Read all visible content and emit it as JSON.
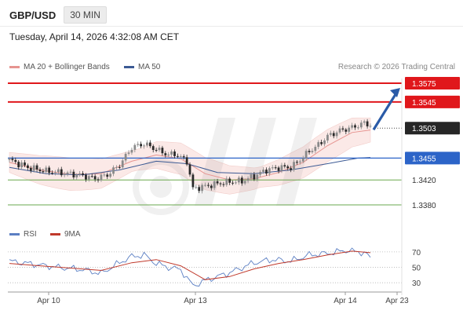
{
  "header": {
    "pair": "GBP/USD",
    "timeframe": "30 MIN",
    "datetime": "Tuesday, April 14, 2026 4:32:08 AM CET"
  },
  "legend": {
    "ma20_label": "MA 20 + Bollinger Bands",
    "ma50_label": "MA 50",
    "credit": "Research © 2026 Trading Central"
  },
  "rsi_legend": {
    "rsi_label": "RSI",
    "ma_label": "9MA"
  },
  "colors": {
    "resistance": "#e0171b",
    "current": "#262626",
    "pivot": "#2c64c8",
    "support": "#6aa84f",
    "bull_candle": "#8a8a8a",
    "bear_candle": "#2a2a2a",
    "bollinger_fill": "#fbe7e5",
    "ma20": "#e69490",
    "ma50": "#3c5a94",
    "arrow": "#2a5ba8",
    "rsi_line": "#5b7fc3",
    "rsi_ma": "#c0392b"
  },
  "chart_data": [
    {
      "type": "candlestick",
      "title": "GBP/USD 30 MIN",
      "y_scale": {
        "top": 1.3575,
        "bottom": 1.338
      },
      "levels": [
        {
          "value": 1.3575,
          "label": "1.3575",
          "kind": "resistance"
        },
        {
          "value": 1.3545,
          "label": "1.3545",
          "kind": "resistance"
        },
        {
          "value": 1.3503,
          "label": "1.3503",
          "kind": "current"
        },
        {
          "value": 1.3455,
          "label": "1.3455",
          "kind": "pivot"
        },
        {
          "value": 1.342,
          "label": "1.3420",
          "kind": "support"
        },
        {
          "value": 1.338,
          "label": "1.3380",
          "kind": "support"
        }
      ],
      "x_ticks": [
        "Apr 10",
        "Apr 13",
        "Apr 14",
        "Apr 23"
      ],
      "price_path": [
        [
          0,
          1.3452
        ],
        [
          6,
          1.344
        ],
        [
          12,
          1.3434
        ],
        [
          18,
          1.3431
        ],
        [
          24,
          1.3427
        ],
        [
          28,
          1.3422
        ],
        [
          32,
          1.3428
        ],
        [
          36,
          1.3444
        ],
        [
          40,
          1.3472
        ],
        [
          44,
          1.3478
        ],
        [
          48,
          1.3469
        ],
        [
          52,
          1.346
        ],
        [
          54,
          1.3462
        ],
        [
          58,
          1.345
        ],
        [
          60,
          1.3406
        ],
        [
          64,
          1.341
        ],
        [
          68,
          1.3414
        ],
        [
          72,
          1.3417
        ],
        [
          76,
          1.3418
        ],
        [
          80,
          1.3426
        ],
        [
          84,
          1.3436
        ],
        [
          88,
          1.344
        ],
        [
          92,
          1.344
        ],
        [
          95,
          1.3452
        ],
        [
          98,
          1.3466
        ],
        [
          101,
          1.3476
        ],
        [
          104,
          1.349
        ],
        [
          108,
          1.3499
        ],
        [
          112,
          1.3504
        ],
        [
          116,
          1.3511
        ],
        [
          118,
          1.3508
        ]
      ],
      "ma20_path": [
        [
          0,
          1.3448
        ],
        [
          10,
          1.3436
        ],
        [
          20,
          1.3429
        ],
        [
          30,
          1.343
        ],
        [
          40,
          1.345
        ],
        [
          48,
          1.346
        ],
        [
          56,
          1.3454
        ],
        [
          64,
          1.343
        ],
        [
          72,
          1.342
        ],
        [
          80,
          1.3422
        ],
        [
          88,
          1.3432
        ],
        [
          96,
          1.3448
        ],
        [
          104,
          1.3475
        ],
        [
          112,
          1.3496
        ],
        [
          118,
          1.35
        ]
      ],
      "ma50_path": [
        [
          0,
          1.344
        ],
        [
          12,
          1.343
        ],
        [
          24,
          1.3428
        ],
        [
          36,
          1.3436
        ],
        [
          48,
          1.345
        ],
        [
          58,
          1.3446
        ],
        [
          68,
          1.3432
        ],
        [
          80,
          1.343
        ],
        [
          92,
          1.3436
        ],
        [
          104,
          1.3446
        ],
        [
          114,
          1.3455
        ],
        [
          118,
          1.3456
        ]
      ],
      "projection": {
        "from": 1.3503,
        "to": 1.3575
      }
    },
    {
      "type": "line",
      "title": "RSI",
      "y_ticks": [
        70,
        50,
        30
      ],
      "y_range": [
        20,
        75
      ],
      "rsi_path": [
        [
          0,
          58
        ],
        [
          8,
          54
        ],
        [
          16,
          50
        ],
        [
          24,
          47
        ],
        [
          30,
          42
        ],
        [
          36,
          56
        ],
        [
          40,
          64
        ],
        [
          44,
          66
        ],
        [
          48,
          55
        ],
        [
          52,
          50
        ],
        [
          56,
          47
        ],
        [
          60,
          26
        ],
        [
          64,
          33
        ],
        [
          72,
          43
        ],
        [
          80,
          56
        ],
        [
          86,
          60
        ],
        [
          92,
          58
        ],
        [
          98,
          66
        ],
        [
          104,
          68
        ],
        [
          110,
          72
        ],
        [
          116,
          69
        ],
        [
          118,
          62
        ]
      ],
      "ma_path": [
        [
          0,
          55
        ],
        [
          10,
          52
        ],
        [
          20,
          49
        ],
        [
          30,
          46
        ],
        [
          40,
          56
        ],
        [
          48,
          60
        ],
        [
          56,
          52
        ],
        [
          64,
          34
        ],
        [
          72,
          38
        ],
        [
          80,
          48
        ],
        [
          88,
          55
        ],
        [
          96,
          60
        ],
        [
          104,
          66
        ],
        [
          112,
          71
        ],
        [
          118,
          69
        ]
      ]
    }
  ]
}
